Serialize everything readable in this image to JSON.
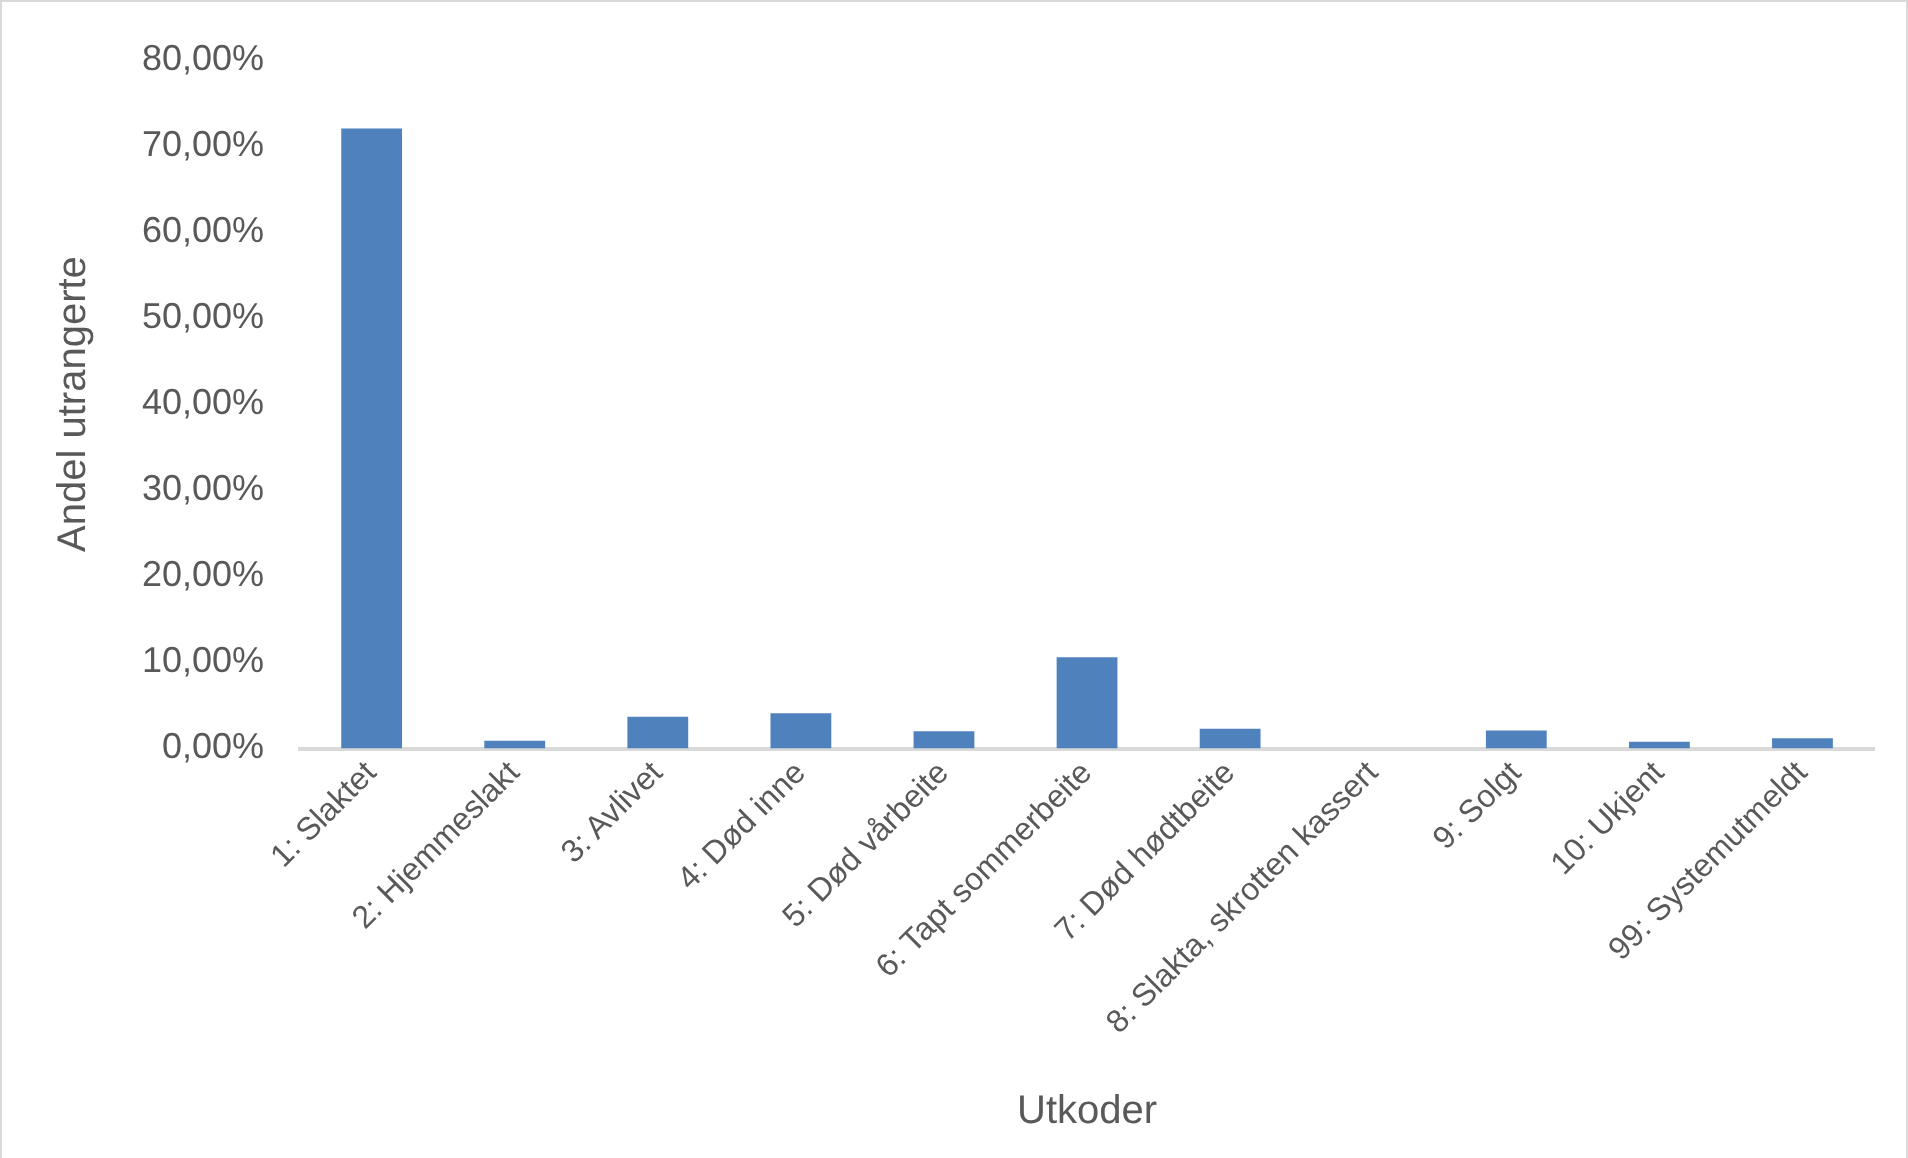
{
  "chart_data": {
    "type": "bar",
    "xlabel": "Utkoder",
    "ylabel": "Andel utrangerte",
    "categories": [
      "1: Slaktet",
      "2: Hjemmeslakt",
      "3: Avlivet",
      "4: Død inne",
      "5: Død vårbeite",
      "6: Tapt sommerbeite",
      "7: Død hødtbeite",
      "8: Slakta, skrotten kassert",
      "9: Solgt",
      "10: Ukjent",
      "99: Systemutmeldt"
    ],
    "values": [
      72.0,
      0.9,
      3.7,
      4.1,
      2.0,
      10.6,
      2.3,
      0,
      2.1,
      0.8,
      1.2
    ],
    "color": "#4f81bd",
    "ylim": [
      0,
      80
    ],
    "yticks": [
      {
        "value": 0,
        "label": "0,00%"
      },
      {
        "value": 10,
        "label": "10,00%"
      },
      {
        "value": 20,
        "label": "20,00%"
      },
      {
        "value": 30,
        "label": "30,00%"
      },
      {
        "value": 40,
        "label": "40,00%"
      },
      {
        "value": 50,
        "label": "50,00%"
      },
      {
        "value": 60,
        "label": "60,00%"
      },
      {
        "value": 70,
        "label": "70,00%"
      },
      {
        "value": 80,
        "label": "80,00%"
      }
    ],
    "grid": false,
    "legend": false
  }
}
